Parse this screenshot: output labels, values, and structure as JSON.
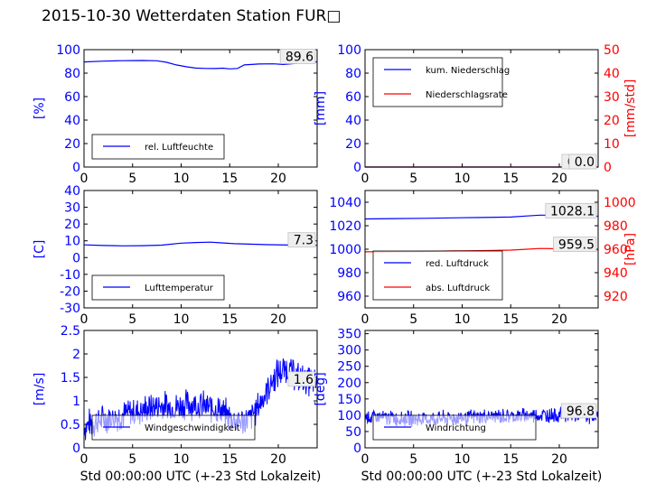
{
  "figure": {
    "title": "2015-10-30 Wetterdaten Station FUR□"
  },
  "chart_data": [
    {
      "type": "line",
      "position": "top-left",
      "xlabel": "",
      "xlim": [
        0,
        24
      ],
      "xticks": [
        0,
        5,
        10,
        15,
        20
      ],
      "left_axis": {
        "label": "[%]",
        "color": "#0000ff",
        "ylim": [
          0,
          100
        ],
        "ticks": [
          0,
          20,
          40,
          60,
          80,
          100
        ]
      },
      "series": [
        {
          "name": "rel. Luftfeuchte",
          "color": "#0000ff",
          "axis": "left",
          "points": [
            [
              0,
              89.5
            ],
            [
              2,
              90.2
            ],
            [
              4,
              90.6
            ],
            [
              6,
              90.8
            ],
            [
              7.5,
              90.5
            ],
            [
              8.5,
              89.2
            ],
            [
              9.5,
              87
            ],
            [
              10.5,
              85.5
            ],
            [
              11.5,
              84.3
            ],
            [
              12.5,
              84
            ],
            [
              13.5,
              83.9
            ],
            [
              14.3,
              84.2
            ],
            [
              15,
              83.6
            ],
            [
              15.8,
              84
            ],
            [
              16.5,
              87
            ],
            [
              18,
              87.8
            ],
            [
              19.5,
              87.9
            ],
            [
              20.5,
              87.4
            ],
            [
              21.5,
              88.1
            ],
            [
              22.5,
              88.9
            ],
            [
              24,
              89.6
            ]
          ]
        }
      ],
      "value_label": "89.6",
      "legend_position": "lower-left"
    },
    {
      "type": "line",
      "position": "top-right",
      "xlabel": "",
      "xlim": [
        0,
        24
      ],
      "xticks": [
        0,
        5,
        10,
        15,
        20
      ],
      "left_axis": {
        "label": "[mm]",
        "color": "#0000ff",
        "ylim": [
          0,
          100
        ],
        "ticks": [
          0,
          20,
          40,
          60,
          80,
          100
        ]
      },
      "right_axis": {
        "label": "[mm/std]",
        "color": "#ff0000",
        "ylim": [
          0,
          50
        ],
        "ticks": [
          0,
          10,
          20,
          30,
          40,
          50
        ]
      },
      "series": [
        {
          "name": "kum. Niederschlag",
          "color": "#0000ff",
          "axis": "left",
          "points": [
            [
              0,
              0
            ],
            [
              24,
              0
            ]
          ]
        },
        {
          "name": "Niederschlagsrate",
          "color": "#ff0000",
          "axis": "right",
          "points": [
            [
              0,
              0
            ],
            [
              24,
              0
            ]
          ]
        }
      ],
      "value_labels": [
        "0.0",
        "0.0"
      ],
      "legend_position": "upper-left"
    },
    {
      "type": "line",
      "position": "middle-left",
      "xlabel": "",
      "xlim": [
        0,
        24
      ],
      "xticks": [
        0,
        5,
        10,
        15,
        20
      ],
      "left_axis": {
        "label": "[C]",
        "color": "#0000ff",
        "ylim": [
          -30,
          40
        ],
        "ticks": [
          -30,
          -20,
          -10,
          0,
          10,
          20,
          30,
          40
        ]
      },
      "series": [
        {
          "name": "Lufttemperatur",
          "color": "#0000ff",
          "axis": "left",
          "points": [
            [
              0,
              7.6
            ],
            [
              2,
              7.2
            ],
            [
              4,
              7
            ],
            [
              6,
              7.1
            ],
            [
              8,
              7.4
            ],
            [
              10,
              8.6
            ],
            [
              11.5,
              9
            ],
            [
              13,
              9.2
            ],
            [
              14,
              8.8
            ],
            [
              15.5,
              8.3
            ],
            [
              17,
              8
            ],
            [
              19,
              7.7
            ],
            [
              21,
              7.5
            ],
            [
              24,
              7.3
            ]
          ]
        }
      ],
      "value_label": "7.3",
      "legend_position": "lower-left"
    },
    {
      "type": "line",
      "position": "middle-right",
      "xlabel": "",
      "xlim": [
        0,
        24
      ],
      "xticks": [
        0,
        5,
        10,
        15,
        20
      ],
      "left_axis": {
        "color": "#0000ff",
        "ylim": [
          950,
          1050
        ],
        "ticks": [
          960,
          980,
          1000,
          1020,
          1040
        ]
      },
      "right_axis": {
        "label": "[hPa]",
        "color": "#ff0000",
        "ylim": [
          910,
          1010
        ],
        "ticks": [
          920,
          940,
          960,
          980,
          1000
        ]
      },
      "series": [
        {
          "name": "red. Luftdruck",
          "color": "#0000ff",
          "axis": "left",
          "points": [
            [
              0,
              1025.8
            ],
            [
              3,
              1026.1
            ],
            [
              6,
              1026.3
            ],
            [
              9,
              1026.7
            ],
            [
              12,
              1027
            ],
            [
              15,
              1027.4
            ],
            [
              16.5,
              1028.2
            ],
            [
              18,
              1029
            ],
            [
              20,
              1029
            ],
            [
              22,
              1028.4
            ],
            [
              24,
              1028.1
            ]
          ]
        },
        {
          "name": "abs. Luftdruck",
          "color": "#ff0000",
          "axis": "right",
          "points": [
            [
              0,
              957.8
            ],
            [
              3,
              957.9
            ],
            [
              6,
              958.1
            ],
            [
              9,
              958.5
            ],
            [
              12,
              958.8
            ],
            [
              15,
              959.2
            ],
            [
              16.5,
              959.9
            ],
            [
              18,
              960.6
            ],
            [
              20,
              960.4
            ],
            [
              22,
              959.8
            ],
            [
              24,
              959.5
            ]
          ]
        }
      ],
      "value_labels": [
        "1028.1",
        "959.5"
      ],
      "legend_position": "lower-left"
    },
    {
      "type": "line",
      "position": "bottom-left",
      "xlabel": "Std 00:00:00 UTC (+-23 Std Lokalzeit)",
      "xlim": [
        0,
        24
      ],
      "xticks": [
        0,
        5,
        10,
        15,
        20
      ],
      "left_axis": {
        "label": "[m/s]",
        "color": "#0000ff",
        "ylim": [
          0,
          2.5
        ],
        "ticks": [
          0.0,
          0.5,
          1.0,
          1.5,
          2.0,
          2.5
        ]
      },
      "series": [
        {
          "name": "Windgeschwindigkeit",
          "color": "#0000ff",
          "axis": "left",
          "trend": [
            [
              0,
              0.45
            ],
            [
              1,
              0.55
            ],
            [
              2,
              0.6
            ],
            [
              3,
              0.65
            ],
            [
              4,
              0.7
            ],
            [
              5,
              0.75
            ],
            [
              6,
              0.8
            ],
            [
              7,
              0.85
            ],
            [
              8,
              0.9
            ],
            [
              9,
              0.85
            ],
            [
              10,
              0.9
            ],
            [
              11,
              0.95
            ],
            [
              12,
              0.9
            ],
            [
              13,
              0.85
            ],
            [
              14,
              0.8
            ],
            [
              15,
              0.65
            ],
            [
              16,
              0.55
            ],
            [
              17,
              0.6
            ],
            [
              18,
              0.9
            ],
            [
              19,
              1.3
            ],
            [
              20,
              1.6
            ],
            [
              21,
              1.7
            ],
            [
              22,
              1.5
            ],
            [
              23,
              1.45
            ],
            [
              24,
              1.35
            ]
          ],
          "noise": 0.38
        }
      ],
      "value_label": "1.6",
      "legend_position": "lower-left"
    },
    {
      "type": "line",
      "position": "bottom-right",
      "xlabel": "Std 00:00:00 UTC (+-23 Std Lokalzeit)",
      "xlim": [
        0,
        24
      ],
      "xticks": [
        0,
        5,
        10,
        15,
        20
      ],
      "left_axis": {
        "label": "[deg]",
        "color": "#0000ff",
        "ylim": [
          0,
          360
        ],
        "ticks": [
          0,
          50,
          100,
          150,
          200,
          250,
          300,
          350
        ]
      },
      "series": [
        {
          "name": "Windrichtung",
          "color": "#0000ff",
          "axis": "left",
          "trend": [
            [
              0,
              95
            ],
            [
              2,
              92
            ],
            [
              4,
              90
            ],
            [
              6,
              88
            ],
            [
              8,
              90
            ],
            [
              10,
              92
            ],
            [
              12,
              95
            ],
            [
              14,
              97
            ],
            [
              16,
              98
            ],
            [
              18,
              100
            ],
            [
              20,
              102
            ],
            [
              22,
              100
            ],
            [
              24,
              97
            ]
          ],
          "noise": 28
        }
      ],
      "value_label": "96.8",
      "legend_position": "lower-left"
    }
  ]
}
